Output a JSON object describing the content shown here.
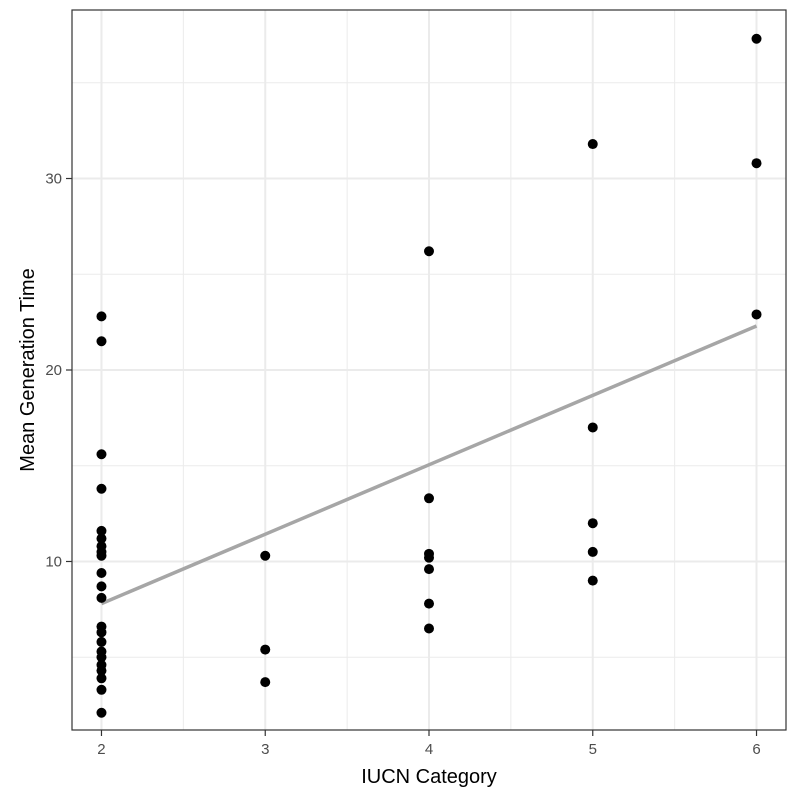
{
  "chart_data": {
    "type": "scatter",
    "title": "",
    "xlabel": "IUCN Category",
    "ylabel": "Mean Generation Time",
    "xlim": [
      1.82,
      6.18
    ],
    "ylim": [
      1.2,
      38.8
    ],
    "x_ticks": [
      2,
      3,
      4,
      5,
      6
    ],
    "y_ticks": [
      10,
      20,
      30
    ],
    "x_minor": [
      2.5,
      3.5,
      4.5,
      5.5
    ],
    "y_minor": [
      5,
      15,
      25,
      35
    ],
    "grid": true,
    "points": [
      {
        "x": 2,
        "y": 22.8
      },
      {
        "x": 2,
        "y": 21.5
      },
      {
        "x": 2,
        "y": 15.6
      },
      {
        "x": 2,
        "y": 13.8
      },
      {
        "x": 2,
        "y": 11.6
      },
      {
        "x": 2,
        "y": 11.2
      },
      {
        "x": 2,
        "y": 10.8
      },
      {
        "x": 2,
        "y": 10.5
      },
      {
        "x": 2,
        "y": 10.3
      },
      {
        "x": 2,
        "y": 9.4
      },
      {
        "x": 2,
        "y": 8.7
      },
      {
        "x": 2,
        "y": 8.1
      },
      {
        "x": 2,
        "y": 6.6
      },
      {
        "x": 2,
        "y": 6.3
      },
      {
        "x": 2,
        "y": 5.8
      },
      {
        "x": 2,
        "y": 5.3
      },
      {
        "x": 2,
        "y": 5.0
      },
      {
        "x": 2,
        "y": 4.6
      },
      {
        "x": 2,
        "y": 4.3
      },
      {
        "x": 2,
        "y": 3.9
      },
      {
        "x": 2,
        "y": 3.3
      },
      {
        "x": 2,
        "y": 2.1
      },
      {
        "x": 3,
        "y": 10.3
      },
      {
        "x": 3,
        "y": 5.4
      },
      {
        "x": 3,
        "y": 3.7
      },
      {
        "x": 4,
        "y": 26.2
      },
      {
        "x": 4,
        "y": 13.3
      },
      {
        "x": 4,
        "y": 10.4
      },
      {
        "x": 4,
        "y": 10.2
      },
      {
        "x": 4,
        "y": 9.6
      },
      {
        "x": 4,
        "y": 7.8
      },
      {
        "x": 4,
        "y": 6.5
      },
      {
        "x": 5,
        "y": 31.8
      },
      {
        "x": 5,
        "y": 17.0
      },
      {
        "x": 5,
        "y": 12.0
      },
      {
        "x": 5,
        "y": 10.5
      },
      {
        "x": 5,
        "y": 9.0
      },
      {
        "x": 6,
        "y": 37.3
      },
      {
        "x": 6,
        "y": 30.8
      },
      {
        "x": 6,
        "y": 22.9
      }
    ],
    "fit_line": {
      "x": [
        2,
        6
      ],
      "y": [
        7.8,
        22.3
      ]
    },
    "colors": {
      "points": "#000000",
      "fit_line": "#a6a6a6",
      "grid": "#ebebeb",
      "border": "#333333"
    }
  }
}
